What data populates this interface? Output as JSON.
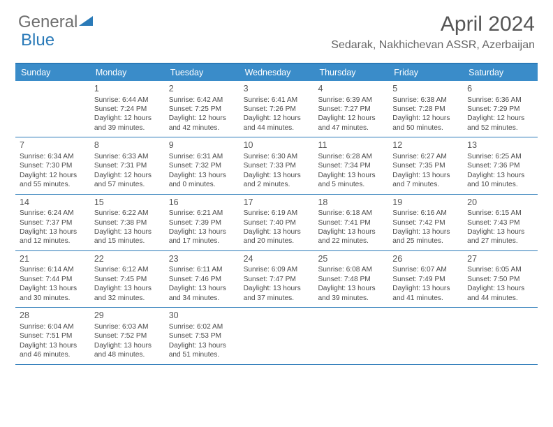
{
  "logo": {
    "part1": "General",
    "part2": "Blue"
  },
  "title": "April 2024",
  "location": "Sedarak, Nakhichevan ASSR, Azerbaijan",
  "weekdays": [
    "Sunday",
    "Monday",
    "Tuesday",
    "Wednesday",
    "Thursday",
    "Friday",
    "Saturday"
  ],
  "colors": {
    "header_bar": "#3a8cc9",
    "border": "#2a7ab8",
    "text": "#4a4a4a"
  },
  "weeks": [
    [
      {
        "n": "",
        "sr": "",
        "ss": "",
        "d1": "",
        "d2": ""
      },
      {
        "n": "1",
        "sr": "Sunrise: 6:44 AM",
        "ss": "Sunset: 7:24 PM",
        "d1": "Daylight: 12 hours",
        "d2": "and 39 minutes."
      },
      {
        "n": "2",
        "sr": "Sunrise: 6:42 AM",
        "ss": "Sunset: 7:25 PM",
        "d1": "Daylight: 12 hours",
        "d2": "and 42 minutes."
      },
      {
        "n": "3",
        "sr": "Sunrise: 6:41 AM",
        "ss": "Sunset: 7:26 PM",
        "d1": "Daylight: 12 hours",
        "d2": "and 44 minutes."
      },
      {
        "n": "4",
        "sr": "Sunrise: 6:39 AM",
        "ss": "Sunset: 7:27 PM",
        "d1": "Daylight: 12 hours",
        "d2": "and 47 minutes."
      },
      {
        "n": "5",
        "sr": "Sunrise: 6:38 AM",
        "ss": "Sunset: 7:28 PM",
        "d1": "Daylight: 12 hours",
        "d2": "and 50 minutes."
      },
      {
        "n": "6",
        "sr": "Sunrise: 6:36 AM",
        "ss": "Sunset: 7:29 PM",
        "d1": "Daylight: 12 hours",
        "d2": "and 52 minutes."
      }
    ],
    [
      {
        "n": "7",
        "sr": "Sunrise: 6:34 AM",
        "ss": "Sunset: 7:30 PM",
        "d1": "Daylight: 12 hours",
        "d2": "and 55 minutes."
      },
      {
        "n": "8",
        "sr": "Sunrise: 6:33 AM",
        "ss": "Sunset: 7:31 PM",
        "d1": "Daylight: 12 hours",
        "d2": "and 57 minutes."
      },
      {
        "n": "9",
        "sr": "Sunrise: 6:31 AM",
        "ss": "Sunset: 7:32 PM",
        "d1": "Daylight: 13 hours",
        "d2": "and 0 minutes."
      },
      {
        "n": "10",
        "sr": "Sunrise: 6:30 AM",
        "ss": "Sunset: 7:33 PM",
        "d1": "Daylight: 13 hours",
        "d2": "and 2 minutes."
      },
      {
        "n": "11",
        "sr": "Sunrise: 6:28 AM",
        "ss": "Sunset: 7:34 PM",
        "d1": "Daylight: 13 hours",
        "d2": "and 5 minutes."
      },
      {
        "n": "12",
        "sr": "Sunrise: 6:27 AM",
        "ss": "Sunset: 7:35 PM",
        "d1": "Daylight: 13 hours",
        "d2": "and 7 minutes."
      },
      {
        "n": "13",
        "sr": "Sunrise: 6:25 AM",
        "ss": "Sunset: 7:36 PM",
        "d1": "Daylight: 13 hours",
        "d2": "and 10 minutes."
      }
    ],
    [
      {
        "n": "14",
        "sr": "Sunrise: 6:24 AM",
        "ss": "Sunset: 7:37 PM",
        "d1": "Daylight: 13 hours",
        "d2": "and 12 minutes."
      },
      {
        "n": "15",
        "sr": "Sunrise: 6:22 AM",
        "ss": "Sunset: 7:38 PM",
        "d1": "Daylight: 13 hours",
        "d2": "and 15 minutes."
      },
      {
        "n": "16",
        "sr": "Sunrise: 6:21 AM",
        "ss": "Sunset: 7:39 PM",
        "d1": "Daylight: 13 hours",
        "d2": "and 17 minutes."
      },
      {
        "n": "17",
        "sr": "Sunrise: 6:19 AM",
        "ss": "Sunset: 7:40 PM",
        "d1": "Daylight: 13 hours",
        "d2": "and 20 minutes."
      },
      {
        "n": "18",
        "sr": "Sunrise: 6:18 AM",
        "ss": "Sunset: 7:41 PM",
        "d1": "Daylight: 13 hours",
        "d2": "and 22 minutes."
      },
      {
        "n": "19",
        "sr": "Sunrise: 6:16 AM",
        "ss": "Sunset: 7:42 PM",
        "d1": "Daylight: 13 hours",
        "d2": "and 25 minutes."
      },
      {
        "n": "20",
        "sr": "Sunrise: 6:15 AM",
        "ss": "Sunset: 7:43 PM",
        "d1": "Daylight: 13 hours",
        "d2": "and 27 minutes."
      }
    ],
    [
      {
        "n": "21",
        "sr": "Sunrise: 6:14 AM",
        "ss": "Sunset: 7:44 PM",
        "d1": "Daylight: 13 hours",
        "d2": "and 30 minutes."
      },
      {
        "n": "22",
        "sr": "Sunrise: 6:12 AM",
        "ss": "Sunset: 7:45 PM",
        "d1": "Daylight: 13 hours",
        "d2": "and 32 minutes."
      },
      {
        "n": "23",
        "sr": "Sunrise: 6:11 AM",
        "ss": "Sunset: 7:46 PM",
        "d1": "Daylight: 13 hours",
        "d2": "and 34 minutes."
      },
      {
        "n": "24",
        "sr": "Sunrise: 6:09 AM",
        "ss": "Sunset: 7:47 PM",
        "d1": "Daylight: 13 hours",
        "d2": "and 37 minutes."
      },
      {
        "n": "25",
        "sr": "Sunrise: 6:08 AM",
        "ss": "Sunset: 7:48 PM",
        "d1": "Daylight: 13 hours",
        "d2": "and 39 minutes."
      },
      {
        "n": "26",
        "sr": "Sunrise: 6:07 AM",
        "ss": "Sunset: 7:49 PM",
        "d1": "Daylight: 13 hours",
        "d2": "and 41 minutes."
      },
      {
        "n": "27",
        "sr": "Sunrise: 6:05 AM",
        "ss": "Sunset: 7:50 PM",
        "d1": "Daylight: 13 hours",
        "d2": "and 44 minutes."
      }
    ],
    [
      {
        "n": "28",
        "sr": "Sunrise: 6:04 AM",
        "ss": "Sunset: 7:51 PM",
        "d1": "Daylight: 13 hours",
        "d2": "and 46 minutes."
      },
      {
        "n": "29",
        "sr": "Sunrise: 6:03 AM",
        "ss": "Sunset: 7:52 PM",
        "d1": "Daylight: 13 hours",
        "d2": "and 48 minutes."
      },
      {
        "n": "30",
        "sr": "Sunrise: 6:02 AM",
        "ss": "Sunset: 7:53 PM",
        "d1": "Daylight: 13 hours",
        "d2": "and 51 minutes."
      },
      {
        "n": "",
        "sr": "",
        "ss": "",
        "d1": "",
        "d2": ""
      },
      {
        "n": "",
        "sr": "",
        "ss": "",
        "d1": "",
        "d2": ""
      },
      {
        "n": "",
        "sr": "",
        "ss": "",
        "d1": "",
        "d2": ""
      },
      {
        "n": "",
        "sr": "",
        "ss": "",
        "d1": "",
        "d2": ""
      }
    ]
  ]
}
